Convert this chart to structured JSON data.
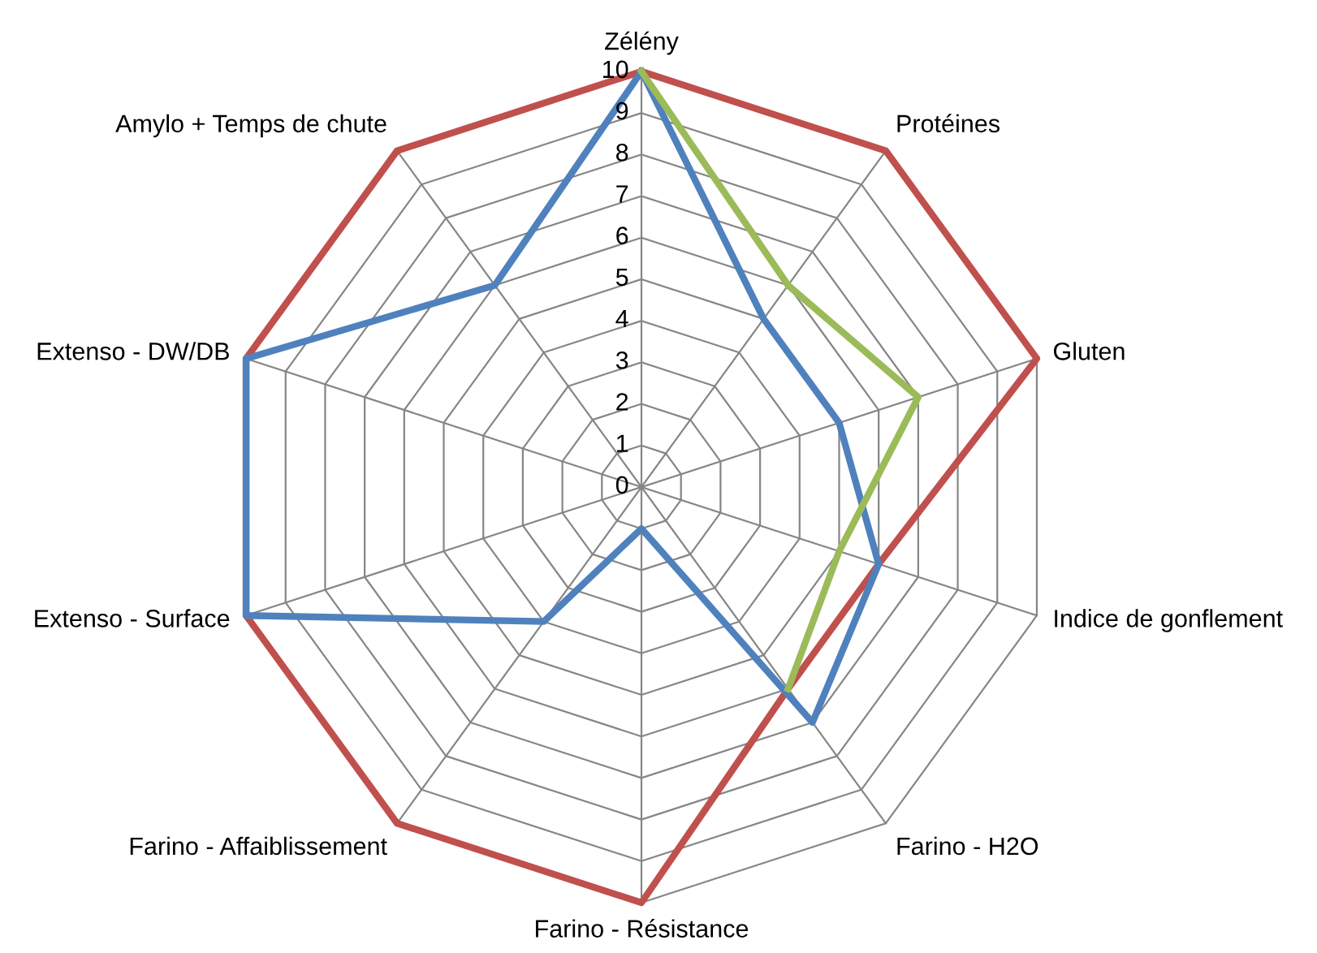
{
  "chart_data": {
    "type": "radar",
    "categories": [
      "Zélény",
      "Protéines",
      "Gluten",
      "Indice de gonflement",
      "Farino - H2O",
      "Farino - Résistance",
      "Farino - Affaiblissement",
      "Extenso - Surface",
      "Extenso - DW/DB",
      "Amylo + Temps de chute"
    ],
    "series": [
      {
        "color": "#c0504d",
        "values": [
          10,
          10,
          10,
          6,
          6,
          10,
          10,
          10,
          10,
          10
        ]
      },
      {
        "color": "#4f81bd",
        "values": [
          10,
          5,
          5,
          6,
          7,
          1,
          4,
          10,
          10,
          6
        ]
      },
      {
        "color": "#9bbb59",
        "values": [
          10,
          6,
          7,
          5,
          6,
          null,
          null,
          null,
          null,
          null
        ]
      }
    ],
    "ylim": [
      0,
      10
    ],
    "yticks": [
      0,
      1,
      2,
      3,
      4,
      5,
      6,
      7,
      8,
      9,
      10
    ],
    "grid": true
  }
}
